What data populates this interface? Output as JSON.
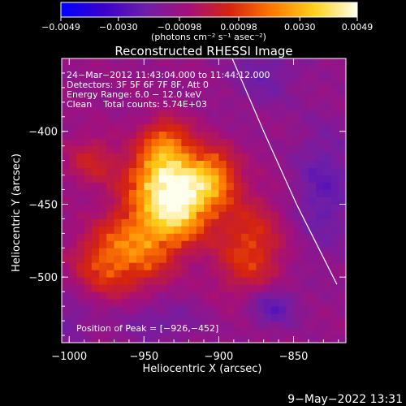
{
  "chart_data": {
    "type": "heatmap",
    "title": "Reconstructed RHESSI Image",
    "xlabel": "Heliocentric X (arcsec)",
    "ylabel": "Heliocentric Y (arcsec)",
    "xlim": [
      -1005,
      -815
    ],
    "ylim": [
      -545,
      -350
    ],
    "xticks": [
      -1000,
      -950,
      -900,
      -850
    ],
    "yticks": [
      -400,
      -450,
      -500
    ],
    "xtick_labels": [
      "−1000",
      "−950",
      "−900",
      "−850"
    ],
    "ytick_labels": [
      "−400",
      "−450",
      "−500"
    ],
    "colorbar": {
      "range": [
        -0.0049,
        0.0049
      ],
      "ticks": [
        -0.0049,
        -0.003,
        -0.00098,
        0.00098,
        0.003,
        0.0049
      ],
      "tick_labels": [
        "−0.0049",
        "−0.0030",
        "−0.00098",
        "0.00098",
        "0.0030",
        "0.0049"
      ],
      "units_label": "(photons cm⁻² s⁻¹ asec⁻²)",
      "colors": [
        "#0000ff",
        "#3a00cc",
        "#6e1fa8",
        "#a4107a",
        "#d6240f",
        "#ff7a00",
        "#ffd21e",
        "#ffffee"
      ]
    },
    "annotations": [
      "24−Mar−2012 11:43:04.000 to 11:44:12.000",
      "Detectors: 3F 5F 6F 7F 8F, Att 0",
      "Energy Range: 6.0 − 12.0 keV",
      "Clean    Total counts: 5.74E+03"
    ],
    "peak_label": "Position of Peak = [−926,−452]",
    "peak": [
      -926,
      -452
    ],
    "limb_points": [
      [
        -891,
        -350
      ],
      [
        -870,
        -400
      ],
      [
        -848,
        -450
      ],
      [
        -821,
        -505
      ]
    ],
    "source_emission": [
      {
        "x": -927,
        "y": -452,
        "sx": 14,
        "sy": 16,
        "amp": 0.0046
      },
      {
        "x": -938,
        "y": -432,
        "sx": 16,
        "sy": 14,
        "amp": 0.0036
      },
      {
        "x": -905,
        "y": -432,
        "sx": 12,
        "sy": 14,
        "amp": 0.0033
      },
      {
        "x": -952,
        "y": -475,
        "sx": 16,
        "sy": 20,
        "amp": 0.003
      },
      {
        "x": -935,
        "y": -408,
        "sx": 12,
        "sy": 12,
        "amp": 0.0026
      },
      {
        "x": -978,
        "y": -490,
        "sx": 14,
        "sy": 16,
        "amp": 0.002
      },
      {
        "x": -880,
        "y": -480,
        "sx": 16,
        "sy": 24,
        "amp": 0.0021
      },
      {
        "x": -985,
        "y": -420,
        "sx": 12,
        "sy": 12,
        "amp": 0.0014
      },
      {
        "x": -870,
        "y": -360,
        "sx": 16,
        "sy": 16,
        "amp": -0.001
      },
      {
        "x": -830,
        "y": -440,
        "sx": 14,
        "sy": 30,
        "amp": -0.0013
      },
      {
        "x": -940,
        "y": -530,
        "sx": 20,
        "sy": 10,
        "amp": -0.0009
      },
      {
        "x": -865,
        "y": -520,
        "sx": 12,
        "sy": 10,
        "amp": -0.0016
      },
      {
        "x": -1000,
        "y": -530,
        "sx": 10,
        "sy": 14,
        "amp": -0.0008
      }
    ]
  },
  "footer": {
    "timestamp": "9−May−2022 13:31"
  }
}
